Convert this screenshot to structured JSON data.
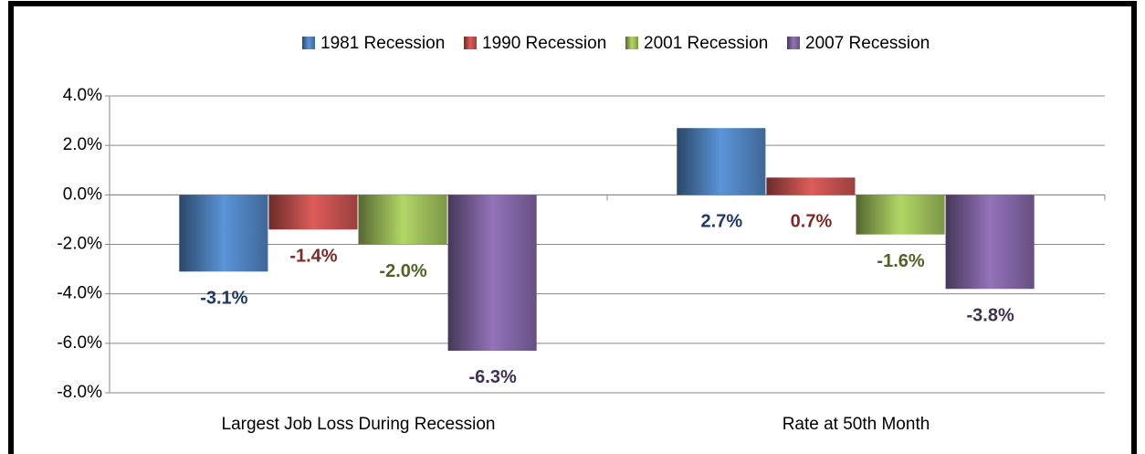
{
  "chart_data": {
    "type": "bar",
    "categories": [
      "Largest Job Loss During Recession",
      "Rate at 50th Month"
    ],
    "series": [
      {
        "name": "1981 Recession",
        "color": "#4f81bd",
        "label_color": "#1f3864",
        "values": [
          -3.1,
          2.7
        ],
        "value_labels": [
          "-3.1%",
          "2.7%"
        ]
      },
      {
        "name": "1990 Recession",
        "color": "#c0504d",
        "label_color": "#7b2a28",
        "values": [
          -1.4,
          0.7
        ],
        "value_labels": [
          "-1.4%",
          "0.7%"
        ]
      },
      {
        "name": "2001 Recession",
        "color": "#9bbb59",
        "label_color": "#4f6228",
        "values": [
          -2.0,
          -1.6
        ],
        "value_labels": [
          "-2.0%",
          "-1.6%"
        ]
      },
      {
        "name": "2007 Recession",
        "color": "#8064a2",
        "label_color": "#3f3151",
        "values": [
          -6.3,
          -3.8
        ],
        "value_labels": [
          "-6.3%",
          "-3.8%"
        ]
      }
    ],
    "ylim": [
      -8,
      4
    ],
    "yticks": [
      {
        "value": 4,
        "label": "4.0%"
      },
      {
        "value": 2,
        "label": "2.0%"
      },
      {
        "value": 0,
        "label": "0.0%"
      },
      {
        "value": -2,
        "label": "-2.0%"
      },
      {
        "value": -4,
        "label": "-4.0%"
      },
      {
        "value": -6,
        "label": "-6.0%"
      },
      {
        "value": -8,
        "label": "-8.0%"
      }
    ],
    "grid": true
  }
}
